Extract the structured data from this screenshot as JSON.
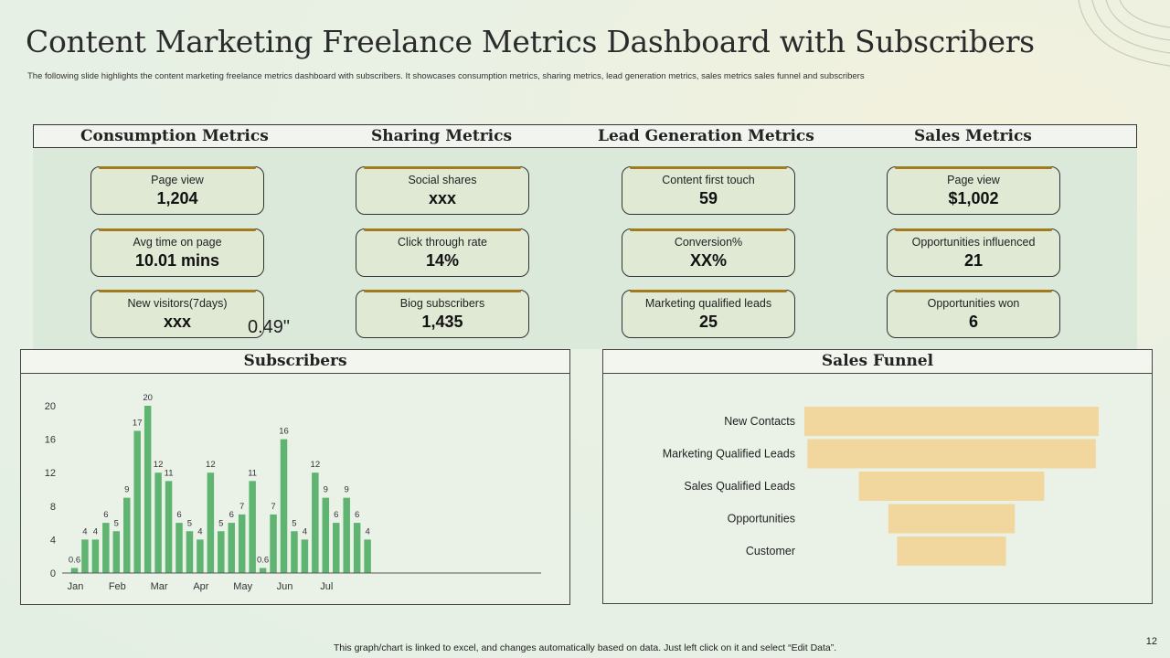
{
  "title": "Content Marketing Freelance Metrics Dashboard with Subscribers",
  "subtitle": "The following slide highlights the  content marketing  freelance metrics dashboard with subscribers. It showcases consumption metrics, sharing metrics, lead  generation metrics, sales metrics  sales funnel and subscribers",
  "sections": {
    "consumption": "Consumption Metrics",
    "sharing": "Sharing Metrics",
    "lead": "Lead Generation Metrics",
    "sales": "Sales Metrics"
  },
  "cards": {
    "consumption": [
      {
        "label": "Page view",
        "value": "1,204"
      },
      {
        "label": "Avg time on page",
        "value": "10.01 mins"
      },
      {
        "label": "New visitors(7days)",
        "value": "xxx"
      }
    ],
    "sharing": [
      {
        "label": "Social shares",
        "value": "xxx"
      },
      {
        "label": "Click through rate",
        "value": "14%"
      },
      {
        "label": "Biog subscribers",
        "value": "1,435"
      }
    ],
    "lead": [
      {
        "label": "Content first touch",
        "value": "59"
      },
      {
        "label": "Conversion%",
        "value": "XX%"
      },
      {
        "label": "Marketing qualified leads",
        "value": "25"
      }
    ],
    "sales": [
      {
        "label": "Page view",
        "value": "$1,002"
      },
      {
        "label": "Opportunities influenced",
        "value": "21"
      },
      {
        "label": "Opportunities won",
        "value": "6"
      }
    ]
  },
  "stray_text": "0.49\"",
  "footer": "This graph/chart is linked to excel,  and changes automatically based on data. Just left click on it and select “Edit Data”.",
  "page_number": "12",
  "colors": {
    "bar": "#5fb472",
    "funnel": "#f1d79e"
  },
  "chart_data": [
    {
      "type": "bar",
      "title": "Subscribers",
      "values": [
        0.6,
        4,
        4,
        6,
        5,
        9,
        17,
        20,
        12,
        11,
        6,
        5,
        4,
        12,
        5,
        6,
        7,
        11,
        0.6,
        7,
        16,
        5,
        4,
        12,
        9,
        6,
        9,
        6,
        4
      ],
      "x_tick_labels": [
        "Jan",
        "Feb",
        "Mar",
        "Apr",
        "May",
        "Jun",
        "Jul"
      ],
      "x_tick_bar_index": [
        0,
        4,
        8,
        12,
        16,
        20,
        24
      ],
      "y_ticks": [
        0,
        4,
        8,
        12,
        16,
        20
      ],
      "ylim": [
        0,
        20
      ]
    },
    {
      "type": "funnel",
      "title": "Sales Funnel",
      "categories": [
        "New Contacts",
        "Marketing Qualified Leads",
        "Sales Qualified Leads",
        "Opportunities",
        "Customer"
      ],
      "values": [
        100,
        98,
        63,
        43,
        37
      ]
    }
  ]
}
